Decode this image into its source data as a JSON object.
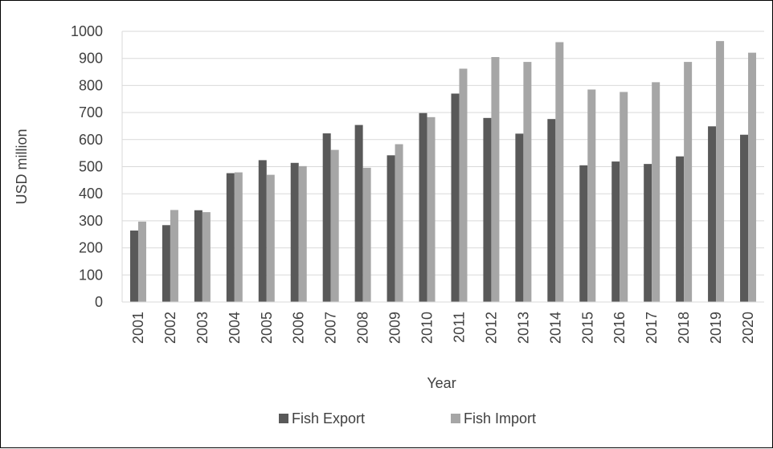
{
  "chart_data": {
    "type": "bar",
    "title": "",
    "xlabel": "Year",
    "ylabel": "USD million",
    "ylim": [
      0,
      1000
    ],
    "yticks": [
      0,
      100,
      200,
      300,
      400,
      500,
      600,
      700,
      800,
      900,
      1000
    ],
    "grid": "horizontal",
    "legend_position": "bottom",
    "categories": [
      "2001",
      "2002",
      "2003",
      "2004",
      "2005",
      "2006",
      "2007",
      "2008",
      "2009",
      "2010",
      "2011",
      "2012",
      "2013",
      "2014",
      "2015",
      "2016",
      "2017",
      "2018",
      "2019",
      "2020"
    ],
    "series": [
      {
        "name": "Fish Export",
        "color": "#595959",
        "values": [
          264,
          284,
          339,
          476,
          524,
          514,
          623,
          654,
          542,
          698,
          770,
          680,
          622,
          676,
          505,
          519,
          510,
          538,
          649,
          618
        ]
      },
      {
        "name": "Fish Import",
        "color": "#a6a6a6",
        "values": [
          297,
          340,
          332,
          479,
          470,
          502,
          562,
          496,
          583,
          683,
          862,
          905,
          887,
          960,
          785,
          776,
          812,
          887,
          964,
          921
        ]
      }
    ]
  }
}
